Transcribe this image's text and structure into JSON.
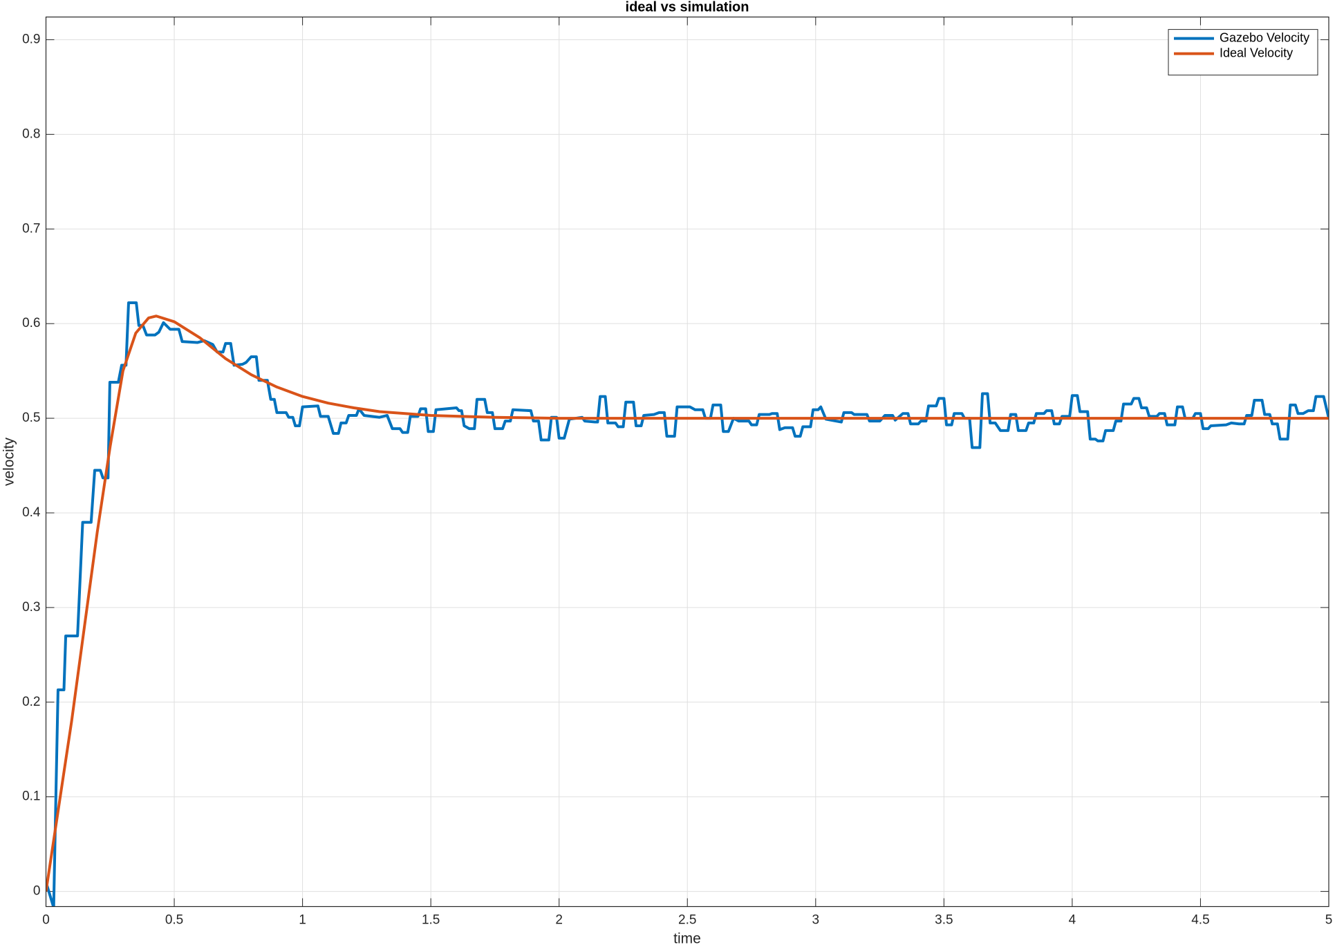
{
  "chart_data": {
    "type": "line",
    "title": "ideal vs simulation",
    "x_label": "time",
    "y_label": "velocity",
    "xlim": [
      0,
      5
    ],
    "ylim": [
      -0.016,
      0.924
    ],
    "xticks": [
      0,
      0.5,
      1,
      1.5,
      2,
      2.5,
      3,
      3.5,
      4,
      4.5,
      5
    ],
    "yticks": [
      0,
      0.1,
      0.2,
      0.3,
      0.4,
      0.5,
      0.6,
      0.7,
      0.8,
      0.9
    ],
    "grid": true,
    "legend": "northeast",
    "series": [
      {
        "name": "Gazebo Velocity",
        "color": "#0072bd",
        "x": [
          0,
          0.03,
          0.047,
          0.07,
          0.077,
          0.123,
          0.143,
          0.176,
          0.19,
          0.212,
          0.222,
          0.242,
          0.249,
          0.282,
          0.295,
          0.312,
          0.322,
          0.352,
          0.362,
          0.378,
          0.392,
          0.425,
          0.44,
          0.458,
          0.484,
          0.518,
          0.531,
          0.59,
          0.617,
          0.65,
          0.667,
          0.69,
          0.7,
          0.72,
          0.733,
          0.766,
          0.78,
          0.8,
          0.82,
          0.83,
          0.863,
          0.876,
          0.89,
          0.9,
          0.936,
          0.946,
          0.962,
          0.972,
          0.988,
          1.0,
          1.06,
          1.07,
          1.1,
          1.12,
          1.14,
          1.15,
          1.17,
          1.18,
          1.21,
          1.22,
          1.24,
          1.3,
          1.33,
          1.35,
          1.38,
          1.39,
          1.41,
          1.42,
          1.45,
          1.46,
          1.48,
          1.49,
          1.51,
          1.52,
          1.6,
          1.61,
          1.62,
          1.63,
          1.65,
          1.67,
          1.68,
          1.71,
          1.72,
          1.74,
          1.75,
          1.78,
          1.79,
          1.81,
          1.82,
          1.89,
          1.9,
          1.92,
          1.93,
          1.96,
          1.97,
          1.99,
          2.0,
          2.02,
          2.04,
          2.09,
          2.1,
          2.14,
          2.15,
          2.16,
          2.18,
          2.19,
          2.22,
          2.23,
          2.25,
          2.26,
          2.29,
          2.3,
          2.32,
          2.33,
          2.37,
          2.39,
          2.41,
          2.42,
          2.45,
          2.46,
          2.51,
          2.53,
          2.56,
          2.57,
          2.59,
          2.6,
          2.63,
          2.64,
          2.66,
          2.68,
          2.7,
          2.74,
          2.75,
          2.77,
          2.78,
          2.82,
          2.83,
          2.85,
          2.86,
          2.88,
          2.91,
          2.92,
          2.94,
          2.95,
          2.98,
          2.99,
          3.01,
          3.02,
          3.04,
          3.08,
          3.1,
          3.11,
          3.14,
          3.15,
          3.2,
          3.21,
          3.25,
          3.27,
          3.3,
          3.31,
          3.34,
          3.36,
          3.37,
          3.4,
          3.41,
          3.43,
          3.44,
          3.47,
          3.48,
          3.5,
          3.51,
          3.53,
          3.54,
          3.57,
          3.58,
          3.6,
          3.61,
          3.64,
          3.65,
          3.67,
          3.68,
          3.7,
          3.72,
          3.75,
          3.76,
          3.78,
          3.79,
          3.82,
          3.83,
          3.85,
          3.86,
          3.89,
          3.9,
          3.92,
          3.93,
          3.95,
          3.96,
          3.99,
          4.0,
          4.02,
          4.03,
          4.06,
          4.07,
          4.09,
          4.1,
          4.12,
          4.13,
          4.16,
          4.17,
          4.19,
          4.2,
          4.23,
          4.24,
          4.26,
          4.27,
          4.29,
          4.3,
          4.33,
          4.34,
          4.36,
          4.37,
          4.4,
          4.41,
          4.43,
          4.44,
          4.47,
          4.48,
          4.5,
          4.51,
          4.53,
          4.54,
          4.6,
          4.62,
          4.65,
          4.67,
          4.68,
          4.7,
          4.71,
          4.74,
          4.75,
          4.77,
          4.78,
          4.8,
          4.81,
          4.84,
          4.85,
          4.87,
          4.88,
          4.9,
          4.92,
          4.94,
          4.95,
          4.98,
          5.0
        ],
        "values": [
          0.01,
          -0.017,
          0.213,
          0.213,
          0.27,
          0.27,
          0.39,
          0.39,
          0.445,
          0.445,
          0.437,
          0.437,
          0.538,
          0.538,
          0.556,
          0.556,
          0.622,
          0.622,
          0.598,
          0.598,
          0.588,
          0.588,
          0.591,
          0.601,
          0.594,
          0.594,
          0.581,
          0.58,
          0.582,
          0.578,
          0.57,
          0.57,
          0.579,
          0.579,
          0.556,
          0.557,
          0.559,
          0.565,
          0.565,
          0.54,
          0.54,
          0.52,
          0.52,
          0.506,
          0.506,
          0.501,
          0.501,
          0.492,
          0.492,
          0.512,
          0.513,
          0.502,
          0.502,
          0.484,
          0.484,
          0.495,
          0.495,
          0.503,
          0.503,
          0.51,
          0.503,
          0.501,
          0.503,
          0.489,
          0.489,
          0.485,
          0.485,
          0.502,
          0.502,
          0.51,
          0.51,
          0.486,
          0.486,
          0.509,
          0.511,
          0.508,
          0.508,
          0.492,
          0.489,
          0.489,
          0.52,
          0.52,
          0.506,
          0.506,
          0.489,
          0.489,
          0.497,
          0.497,
          0.509,
          0.508,
          0.497,
          0.497,
          0.477,
          0.477,
          0.501,
          0.501,
          0.479,
          0.479,
          0.499,
          0.501,
          0.497,
          0.496,
          0.496,
          0.523,
          0.523,
          0.495,
          0.495,
          0.491,
          0.491,
          0.517,
          0.517,
          0.492,
          0.492,
          0.503,
          0.504,
          0.506,
          0.506,
          0.481,
          0.481,
          0.512,
          0.512,
          0.509,
          0.509,
          0.5,
          0.5,
          0.514,
          0.514,
          0.486,
          0.486,
          0.5,
          0.497,
          0.497,
          0.493,
          0.493,
          0.504,
          0.504,
          0.505,
          0.505,
          0.488,
          0.49,
          0.49,
          0.481,
          0.481,
          0.491,
          0.491,
          0.509,
          0.509,
          0.512,
          0.499,
          0.497,
          0.496,
          0.506,
          0.506,
          0.504,
          0.504,
          0.497,
          0.497,
          0.503,
          0.503,
          0.498,
          0.505,
          0.505,
          0.494,
          0.494,
          0.497,
          0.497,
          0.513,
          0.513,
          0.521,
          0.521,
          0.493,
          0.493,
          0.505,
          0.505,
          0.5,
          0.5,
          0.469,
          0.469,
          0.526,
          0.526,
          0.495,
          0.495,
          0.487,
          0.487,
          0.504,
          0.504,
          0.487,
          0.487,
          0.495,
          0.495,
          0.505,
          0.505,
          0.508,
          0.508,
          0.494,
          0.494,
          0.502,
          0.502,
          0.524,
          0.524,
          0.507,
          0.507,
          0.478,
          0.478,
          0.476,
          0.476,
          0.487,
          0.487,
          0.497,
          0.497,
          0.515,
          0.515,
          0.521,
          0.521,
          0.511,
          0.511,
          0.502,
          0.502,
          0.505,
          0.505,
          0.493,
          0.493,
          0.512,
          0.512,
          0.5,
          0.5,
          0.505,
          0.505,
          0.489,
          0.489,
          0.492,
          0.493,
          0.495,
          0.494,
          0.494,
          0.503,
          0.503,
          0.519,
          0.519,
          0.504,
          0.504,
          0.494,
          0.494,
          0.478,
          0.478,
          0.514,
          0.514,
          0.505,
          0.505,
          0.508,
          0.508,
          0.523,
          0.523,
          0.5
        ]
      },
      {
        "name": "Ideal Velocity",
        "color": "#d95319",
        "x": [
          0,
          0.05,
          0.1,
          0.15,
          0.2,
          0.25,
          0.3,
          0.35,
          0.4,
          0.43,
          0.5,
          0.6,
          0.7,
          0.8,
          0.9,
          1.0,
          1.1,
          1.2,
          1.3,
          1.4,
          1.5,
          1.75,
          2,
          3,
          4,
          5
        ],
        "values": [
          0,
          0.09,
          0.18,
          0.28,
          0.38,
          0.47,
          0.55,
          0.59,
          0.606,
          0.608,
          0.602,
          0.585,
          0.563,
          0.546,
          0.533,
          0.523,
          0.516,
          0.511,
          0.507,
          0.505,
          0.503,
          0.501,
          0.5,
          0.5,
          0.5,
          0.5
        ]
      }
    ]
  }
}
